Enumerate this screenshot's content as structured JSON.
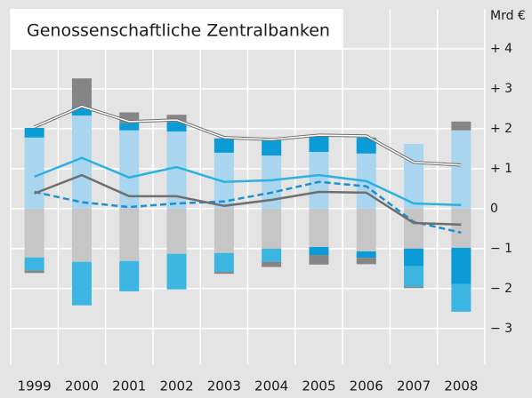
{
  "chart_data": {
    "type": "bar",
    "title": "Genossenschaftliche Zentralbanken",
    "y_label": "Mrd €",
    "categories": [
      "1999",
      "2000",
      "2001",
      "2002",
      "2003",
      "2004",
      "2005",
      "2006",
      "2007",
      "2008"
    ],
    "ylim": [
      -3.85,
      5
    ],
    "yticks": [
      {
        "value": 4,
        "label": "+ 4"
      },
      {
        "value": 3,
        "label": "+ 3"
      },
      {
        "value": 2,
        "label": "+ 2"
      },
      {
        "value": 1,
        "label": "+ 1"
      },
      0,
      {
        "value": -1,
        "label": "− 1"
      },
      {
        "value": -2,
        "label": "− 2"
      },
      {
        "value": -3,
        "label": "− 3"
      }
    ],
    "grid": true,
    "series": [
      {
        "type": "bar",
        "color": "#a9d5ee",
        "values": [
          1.78,
          2.33,
          1.96,
          1.93,
          1.4,
          1.33,
          1.42,
          1.38,
          1.62,
          1.96
        ]
      },
      {
        "type": "bar",
        "color": "#0b9bd7",
        "values": [
          0.24,
          0.22,
          0.18,
          0.24,
          0.36,
          0.38,
          0.4,
          0.4,
          null,
          null
        ]
      },
      {
        "type": "bar",
        "color": "#858585",
        "values": [
          null,
          0.71,
          0.27,
          0.18,
          null,
          null,
          null,
          null,
          null,
          0.22
        ]
      },
      {
        "type": "bar",
        "color": "#c6c6c6",
        "values": [
          -1.22,
          -1.33,
          -1.31,
          -1.13,
          -1.11,
          -1.0,
          -0.96,
          -1.07,
          -1.0,
          -0.98
        ]
      },
      {
        "type": "bar",
        "color": "#0b9bd7",
        "values": [
          null,
          null,
          null,
          null,
          null,
          null,
          -0.2,
          -0.16,
          -0.44,
          -0.91
        ]
      },
      {
        "type": "bar",
        "color": "#3db5e2",
        "values": [
          -0.33,
          -1.09,
          -0.76,
          -0.89,
          -0.47,
          -0.33,
          null,
          null,
          -0.51,
          -0.69
        ]
      },
      {
        "type": "bar",
        "color": "#858585",
        "values": [
          -0.06,
          null,
          null,
          null,
          -0.05,
          -0.13,
          -0.24,
          -0.16,
          -0.04,
          null
        ]
      },
      {
        "type": "line",
        "color": "#6e6e6e",
        "double": true,
        "values": [
          2.04,
          2.56,
          2.18,
          2.22,
          1.78,
          1.73,
          1.84,
          1.82,
          1.16,
          1.09
        ]
      },
      {
        "type": "line",
        "color": "#2bb0e0",
        "values": [
          0.8,
          1.27,
          0.78,
          1.04,
          0.67,
          0.71,
          0.84,
          0.69,
          0.13,
          0.09
        ]
      },
      {
        "type": "line",
        "color": "#1a8fd0",
        "dashed": true,
        "values": [
          0.42,
          0.16,
          0.04,
          0.13,
          0.18,
          0.4,
          0.67,
          0.56,
          -0.33,
          -0.6
        ]
      },
      {
        "type": "line",
        "color": "#6e6e6e",
        "values": [
          0.38,
          0.84,
          0.31,
          0.31,
          0.07,
          0.22,
          0.42,
          0.4,
          -0.36,
          -0.4
        ]
      }
    ]
  }
}
